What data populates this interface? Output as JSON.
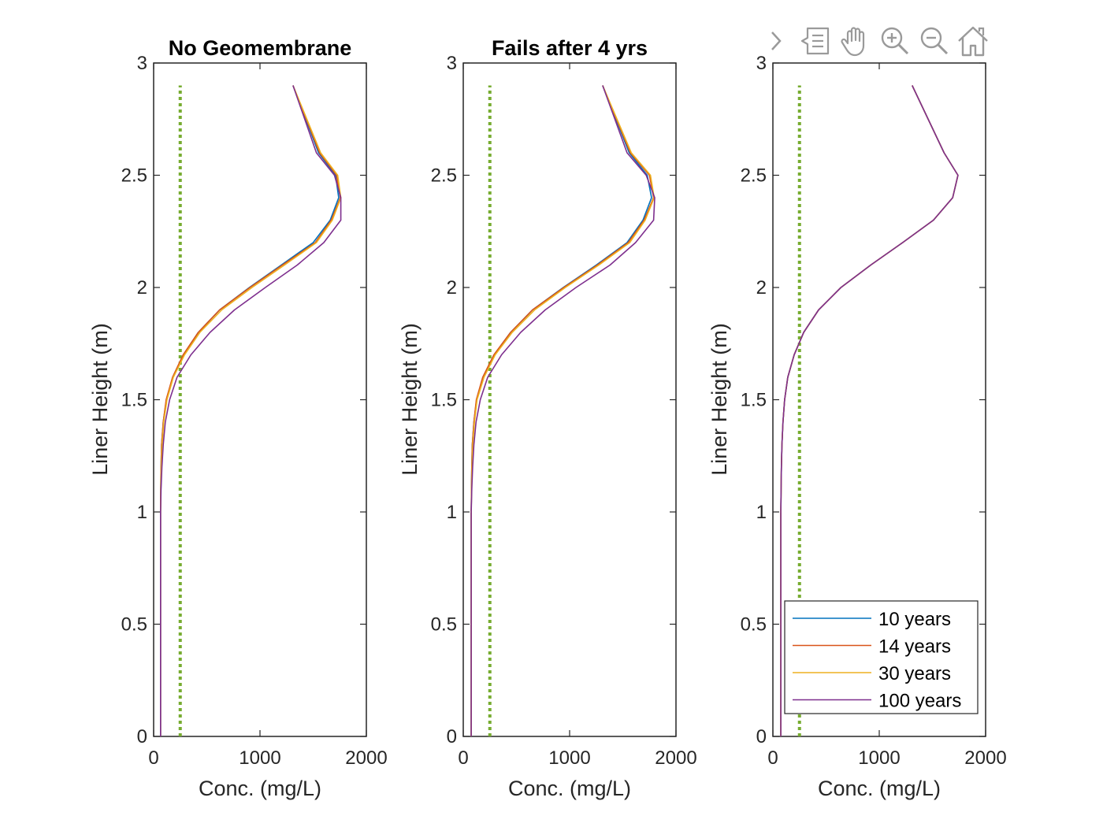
{
  "chart_data": [
    {
      "type": "line",
      "title": "No Geomembrane",
      "xlabel": "Conc. (mg/L)",
      "ylabel": "Liner Height (m)",
      "xlim": [
        0,
        2000
      ],
      "ylim": [
        0,
        3
      ],
      "xticks": [
        "0",
        "1000",
        "2000"
      ],
      "yticks": [
        "0",
        "0.5",
        "1",
        "1.5",
        "2",
        "2.5",
        "3"
      ],
      "grid": false,
      "threshold": {
        "x": 250,
        "y": [
          0,
          2.9
        ],
        "color": "#77AC30",
        "style": "dotted"
      },
      "series": [
        {
          "name": "10 years",
          "color": "#0072BD",
          "x": [
            65,
            65,
            65,
            67,
            70,
            75,
            90,
            120,
            180,
            280,
            420,
            620,
            900,
            1200,
            1500,
            1660,
            1740,
            1710,
            1550,
            1310
          ],
          "y": [
            0,
            0.5,
            1.0,
            1.1,
            1.2,
            1.3,
            1.4,
            1.5,
            1.6,
            1.7,
            1.8,
            1.9,
            2.0,
            2.1,
            2.2,
            2.3,
            2.4,
            2.5,
            2.6,
            2.9
          ]
        },
        {
          "name": "14 years",
          "color": "#D95319",
          "x": [
            65,
            65,
            65,
            67,
            70,
            75,
            90,
            118,
            178,
            278,
            420,
            620,
            905,
            1210,
            1520,
            1670,
            1755,
            1720,
            1560,
            1310
          ],
          "y": [
            0,
            0.5,
            1.0,
            1.1,
            1.2,
            1.3,
            1.4,
            1.5,
            1.6,
            1.7,
            1.8,
            1.9,
            2.0,
            2.1,
            2.2,
            2.3,
            2.4,
            2.5,
            2.6,
            2.9
          ]
        },
        {
          "name": "30 years",
          "color": "#EDB120",
          "x": [
            65,
            65,
            65,
            68,
            72,
            80,
            95,
            125,
            185,
            290,
            435,
            640,
            925,
            1230,
            1530,
            1680,
            1760,
            1730,
            1570,
            1310
          ],
          "y": [
            0,
            0.5,
            1.0,
            1.1,
            1.2,
            1.3,
            1.4,
            1.5,
            1.6,
            1.7,
            1.8,
            1.9,
            2.0,
            2.1,
            2.2,
            2.3,
            2.4,
            2.5,
            2.6,
            2.9
          ]
        },
        {
          "name": "100 years",
          "color": "#7E2F8E",
          "x": [
            65,
            65,
            65,
            70,
            78,
            90,
            110,
            150,
            220,
            350,
            530,
            760,
            1050,
            1350,
            1600,
            1760,
            1760,
            1700,
            1530,
            1310
          ],
          "y": [
            0,
            0.5,
            1.0,
            1.1,
            1.2,
            1.3,
            1.4,
            1.5,
            1.6,
            1.7,
            1.8,
            1.9,
            2.0,
            2.1,
            2.2,
            2.3,
            2.4,
            2.5,
            2.6,
            2.9
          ]
        }
      ]
    },
    {
      "type": "line",
      "title": "Fails after 4 yrs",
      "xlabel": "Conc. (mg/L)",
      "ylabel": "Liner Height (m)",
      "xlim": [
        0,
        2000
      ],
      "ylim": [
        0,
        3
      ],
      "xticks": [
        "0",
        "1000",
        "2000"
      ],
      "yticks": [
        "0",
        "0.5",
        "1",
        "1.5",
        "2",
        "2.5",
        "3"
      ],
      "grid": false,
      "threshold": {
        "x": 250,
        "y": [
          0,
          2.9
        ],
        "color": "#77AC30",
        "style": "dotted"
      },
      "series": [
        {
          "name": "10 years",
          "color": "#0072BD",
          "x": [
            75,
            75,
            75,
            77,
            80,
            85,
            100,
            125,
            185,
            290,
            445,
            650,
            940,
            1250,
            1540,
            1690,
            1770,
            1730,
            1560,
            1310
          ],
          "y": [
            0,
            0.5,
            1.0,
            1.1,
            1.2,
            1.3,
            1.4,
            1.5,
            1.6,
            1.7,
            1.8,
            1.9,
            2.0,
            2.1,
            2.2,
            2.3,
            2.4,
            2.5,
            2.6,
            2.9
          ]
        },
        {
          "name": "14 years",
          "color": "#D95319",
          "x": [
            75,
            75,
            75,
            77,
            80,
            85,
            100,
            123,
            183,
            288,
            445,
            650,
            945,
            1260,
            1550,
            1700,
            1790,
            1750,
            1570,
            1310
          ],
          "y": [
            0,
            0.5,
            1.0,
            1.1,
            1.2,
            1.3,
            1.4,
            1.5,
            1.6,
            1.7,
            1.8,
            1.9,
            2.0,
            2.1,
            2.2,
            2.3,
            2.4,
            2.5,
            2.6,
            2.9
          ]
        },
        {
          "name": "30 years",
          "color": "#EDB120",
          "x": [
            75,
            75,
            75,
            78,
            82,
            90,
            105,
            130,
            195,
            300,
            460,
            670,
            960,
            1275,
            1565,
            1710,
            1795,
            1760,
            1580,
            1310
          ],
          "y": [
            0,
            0.5,
            1.0,
            1.1,
            1.2,
            1.3,
            1.4,
            1.5,
            1.6,
            1.7,
            1.8,
            1.9,
            2.0,
            2.1,
            2.2,
            2.3,
            2.4,
            2.5,
            2.6,
            2.9
          ]
        },
        {
          "name": "100 years",
          "color": "#7E2F8E",
          "x": [
            75,
            75,
            75,
            80,
            88,
            100,
            120,
            160,
            230,
            360,
            540,
            770,
            1060,
            1380,
            1620,
            1790,
            1800,
            1720,
            1540,
            1310
          ],
          "y": [
            0,
            0.5,
            1.0,
            1.1,
            1.2,
            1.3,
            1.4,
            1.5,
            1.6,
            1.7,
            1.8,
            1.9,
            2.0,
            2.1,
            2.2,
            2.3,
            2.4,
            2.5,
            2.6,
            2.9
          ]
        }
      ]
    },
    {
      "type": "line",
      "title": "",
      "xlabel": "Conc. (mg/L)",
      "ylabel": "Liner Height (m)",
      "xlim": [
        0,
        2000
      ],
      "ylim": [
        0,
        3
      ],
      "xticks": [
        "0",
        "1000",
        "2000"
      ],
      "yticks": [
        "0",
        "0.5",
        "1",
        "1.5",
        "2",
        "2.5",
        "3"
      ],
      "grid": false,
      "legend_location": "bottom-right",
      "threshold": {
        "x": 250,
        "y": [
          0,
          2.9
        ],
        "color": "#77AC30",
        "style": "dotted"
      },
      "series": [
        {
          "name": "10 years",
          "color": "#0072BD",
          "x": [
            75,
            75,
            75,
            77,
            80,
            85,
            95,
            110,
            140,
            200,
            290,
            430,
            640,
            920,
            1220,
            1510,
            1690,
            1740,
            1610,
            1310
          ],
          "y": [
            0,
            0.5,
            1.0,
            1.1,
            1.2,
            1.3,
            1.4,
            1.5,
            1.6,
            1.7,
            1.8,
            1.9,
            2.0,
            2.1,
            2.2,
            2.3,
            2.4,
            2.5,
            2.6,
            2.9
          ]
        },
        {
          "name": "14 years",
          "color": "#D95319",
          "x": [
            75,
            75,
            75,
            77,
            80,
            85,
            95,
            110,
            140,
            200,
            290,
            430,
            640,
            920,
            1220,
            1510,
            1690,
            1740,
            1610,
            1310
          ],
          "y": [
            0,
            0.5,
            1.0,
            1.1,
            1.2,
            1.3,
            1.4,
            1.5,
            1.6,
            1.7,
            1.8,
            1.9,
            2.0,
            2.1,
            2.2,
            2.3,
            2.4,
            2.5,
            2.6,
            2.9
          ]
        },
        {
          "name": "30 years",
          "color": "#EDB120",
          "x": [
            75,
            75,
            75,
            77,
            80,
            85,
            95,
            110,
            140,
            200,
            290,
            430,
            640,
            920,
            1220,
            1510,
            1690,
            1740,
            1610,
            1310
          ],
          "y": [
            0,
            0.5,
            1.0,
            1.1,
            1.2,
            1.3,
            1.4,
            1.5,
            1.6,
            1.7,
            1.8,
            1.9,
            2.0,
            2.1,
            2.2,
            2.3,
            2.4,
            2.5,
            2.6,
            2.9
          ]
        },
        {
          "name": "100 years",
          "color": "#7E2F8E",
          "x": [
            75,
            75,
            75,
            77,
            80,
            85,
            95,
            110,
            140,
            200,
            290,
            430,
            640,
            920,
            1220,
            1510,
            1690,
            1740,
            1610,
            1310
          ],
          "y": [
            0,
            0.5,
            1.0,
            1.1,
            1.2,
            1.3,
            1.4,
            1.5,
            1.6,
            1.7,
            1.8,
            1.9,
            2.0,
            2.1,
            2.2,
            2.3,
            2.4,
            2.5,
            2.6,
            2.9
          ]
        }
      ]
    }
  ],
  "toolbar": {
    "icons": [
      "chevron-right-icon",
      "data-tips-icon",
      "pan-hand-icon",
      "zoom-in-icon",
      "zoom-out-icon",
      "home-icon"
    ],
    "icon_color": "#9a9a9a"
  }
}
